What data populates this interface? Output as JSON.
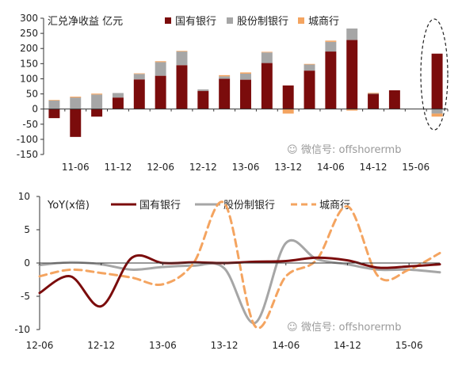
{
  "chart_data": [
    {
      "type": "bar",
      "stacked": true,
      "title": "汇兑净收益  亿元",
      "ylim": [
        -150,
        300
      ],
      "yticks": [
        -150,
        -100,
        -50,
        0,
        50,
        100,
        150,
        200,
        250,
        300
      ],
      "xtick_labels": [
        "11-06",
        "11-12",
        "12-06",
        "12-12",
        "13-06",
        "13-12",
        "14-06",
        "14-12",
        "15-06"
      ],
      "xtick_categories": [
        "2011Q2",
        "2011Q4",
        "2012Q2",
        "2012Q4",
        "2013Q2",
        "2013Q4",
        "2014Q2",
        "2014Q4",
        "2015Q2"
      ],
      "categories": [
        "2011Q1",
        "2011Q2",
        "2011Q3",
        "2011Q4",
        "2012Q1",
        "2012Q2",
        "2012Q3",
        "2012Q4",
        "2013Q1",
        "2013Q2",
        "2013Q3",
        "2013Q4",
        "2014Q1",
        "2014Q2",
        "2014Q3",
        "2014Q4",
        "2015Q1",
        "2015Q2",
        "2015Q3"
      ],
      "series": [
        {
          "name": "国有银行",
          "color": "#7b0c0c",
          "values": [
            -30,
            -92,
            -25,
            38,
            98,
            110,
            145,
            60,
            100,
            97,
            152,
            78,
            127,
            190,
            228,
            50,
            62,
            0,
            183
          ]
        },
        {
          "name": "股份制银行",
          "color": "#a6a6a6",
          "values": [
            28,
            38,
            48,
            15,
            18,
            45,
            45,
            5,
            8,
            20,
            35,
            0,
            20,
            32,
            38,
            2,
            0,
            0,
            -15
          ]
        },
        {
          "name": "城商行",
          "color": "#f4a460",
          "values": [
            2,
            3,
            3,
            0,
            2,
            3,
            2,
            0,
            4,
            4,
            2,
            -15,
            2,
            4,
            -5,
            2,
            0,
            0,
            -10
          ]
        }
      ],
      "grid": false,
      "legend": "top",
      "annotation": "dashed ellipse around the last bar"
    },
    {
      "type": "line",
      "ylabel": "YoY(x倍)",
      "ylim": [
        -10,
        10
      ],
      "yticks": [
        -10,
        -5,
        0,
        5,
        10
      ],
      "xtick_labels": [
        "12-06",
        "12-12",
        "13-06",
        "13-12",
        "14-06",
        "14-12",
        "15-06"
      ],
      "x": [
        "2012Q2",
        "2012Q3",
        "2012Q4",
        "2013Q1",
        "2013Q2",
        "2013Q3",
        "2013Q4",
        "2014Q1",
        "2014Q2",
        "2014Q3",
        "2014Q4",
        "2015Q1",
        "2015Q2",
        "2015Q3"
      ],
      "series": [
        {
          "name": "国有银行",
          "color": "#7b0c0c",
          "style": "solid",
          "values": [
            -4.5,
            -2.0,
            -6.5,
            0.8,
            0.0,
            0.1,
            0.0,
            0.2,
            0.3,
            0.8,
            0.4,
            -0.7,
            -0.5,
            -0.2
          ]
        },
        {
          "name": "股份制银行",
          "color": "#a6a6a6",
          "style": "solid",
          "values": [
            -0.3,
            0.1,
            -0.2,
            -1.0,
            -0.6,
            -0.4,
            -0.8,
            -9.0,
            3.0,
            0.6,
            -0.2,
            -1.0,
            -1.0,
            -1.4
          ]
        },
        {
          "name": "城商行",
          "color": "#f4a460",
          "style": "dashed",
          "values": [
            -2.0,
            -1.0,
            -1.5,
            -2.2,
            -3.2,
            0.0,
            9.0,
            -9.5,
            -2.0,
            0.5,
            8.5,
            -2.0,
            -1.0,
            1.5
          ]
        }
      ],
      "grid": false,
      "legend": "top"
    }
  ],
  "watermark": {
    "top": "微信号: offshorermb",
    "bottom": "微信号: offshorermb"
  }
}
